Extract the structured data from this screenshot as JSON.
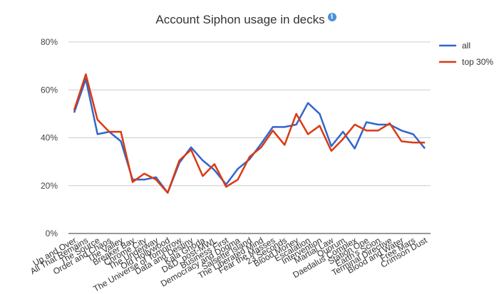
{
  "chart_data": {
    "type": "line",
    "title": "Account Siphon usage in decks",
    "info_icon": "info-icon",
    "ylim": [
      0,
      80
    ],
    "yticks": [
      "0%",
      "20%",
      "40%",
      "60%",
      "80%"
    ],
    "ytick_values": [
      0,
      20,
      40,
      60,
      80
    ],
    "grid": true,
    "legend_position": "right",
    "categories": [
      "Up and Over",
      "All That Remains",
      "The Source",
      "Order and Chaos",
      "The Valley",
      "Breaker Bay",
      "Chrome City",
      "The Underway",
      "Old Hollywood",
      "The Universe of Tomorrow",
      "Data and Destiny",
      "Kala Ghoda",
      "D&D, post-MWL",
      "Business First",
      "Democracy and Dogma",
      "Salsette Island",
      "The Liberated Mind",
      "Fear the Masses",
      "23 Seconds",
      "Blood Money",
      "Escalation",
      "Intervention",
      "Martial Law",
      "Quorum",
      "Daedalus Complex",
      "Station One",
      "Earth's Scion",
      "Terminal Directive",
      "Blood and Water",
      "Free Mars",
      "Crimson Dust"
    ],
    "series": [
      {
        "name": "all",
        "color": "#3366cc",
        "values": [
          50.5,
          64.5,
          41.5,
          42.5,
          38.5,
          22.5,
          22.5,
          23.5,
          17.0,
          29.5,
          36.0,
          30.5,
          26.5,
          20.5,
          27.0,
          31.0,
          37.5,
          44.5,
          44.5,
          45.5,
          54.5,
          50.0,
          36.5,
          42.5,
          35.5,
          46.5,
          45.5,
          45.5,
          43.0,
          41.5,
          35.5
        ]
      },
      {
        "name": "top 30%",
        "color": "#dc3912",
        "values": [
          51.5,
          66.5,
          47.5,
          42.5,
          42.5,
          21.5,
          25.0,
          22.5,
          17.0,
          30.5,
          35.0,
          24.0,
          29.0,
          19.5,
          22.5,
          32.0,
          36.0,
          43.0,
          37.0,
          50.0,
          41.5,
          45.0,
          34.5,
          39.5,
          45.5,
          43.0,
          43.0,
          46.0,
          38.5,
          38.0,
          38.0
        ]
      }
    ]
  }
}
